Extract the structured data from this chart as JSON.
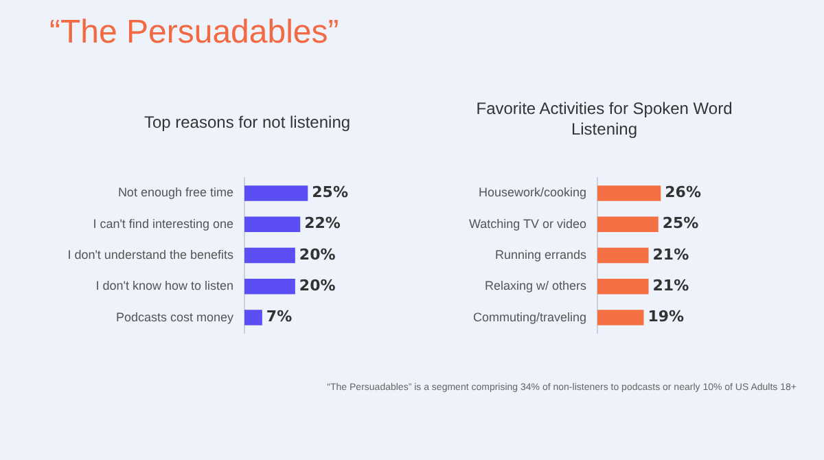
{
  "chart_data": [
    {
      "type": "other",
      "title": "“The Persuadables”",
      "annotations": [
        "“The Persuadables” is a segment comprising 34% of non-listeners to podcasts or nearly 10% of US Adults 18+"
      ]
    },
    {
      "type": "bar",
      "orientation": "horizontal",
      "title": "Top reasons for not listening",
      "categories": [
        "Not enough free time",
        "I can't find interesting one",
        "I don't understand the benefits",
        "I don't know how to listen",
        "Podcasts cost money"
      ],
      "values": [
        25,
        22,
        20,
        20,
        7
      ],
      "value_labels": [
        "25%",
        "22%",
        "20%",
        "20%",
        "7%"
      ],
      "color": "#5b4ef2",
      "tick_labels": "y",
      "grid": false,
      "legend": false
    },
    {
      "type": "bar",
      "orientation": "horizontal",
      "title": "Favorite Activities for Spoken Word Listening",
      "categories": [
        "Housework/cooking",
        "Watching TV or video",
        "Running errands",
        "Relaxing w/ others",
        "Commuting/traveling"
      ],
      "values": [
        26,
        25,
        21,
        21,
        19
      ],
      "value_labels": [
        "26%",
        "25%",
        "21%",
        "21%",
        "19%"
      ],
      "color": "#f47043",
      "tick_labels": "y",
      "grid": false,
      "legend": false
    }
  ]
}
